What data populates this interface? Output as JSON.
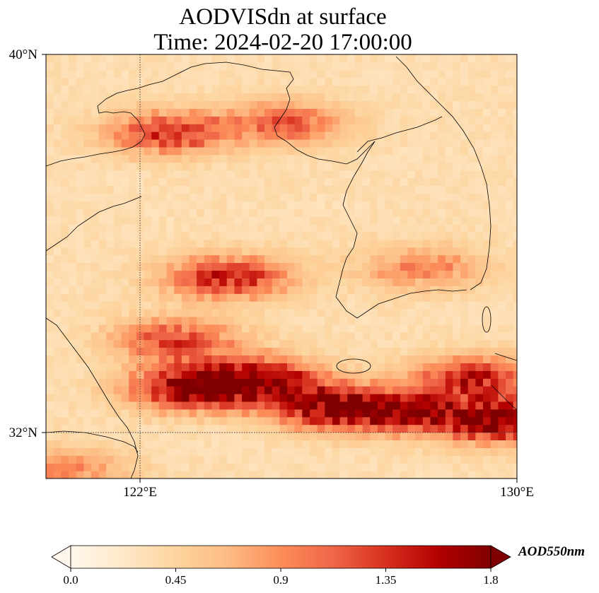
{
  "title": {
    "line1": "AODVISdn at surface",
    "line2": "Time: 2024-02-20 17:00:00"
  },
  "axes": {
    "lat_ticks": [
      "40°N",
      "32°N"
    ],
    "lon_ticks": [
      "122°E",
      "130°E"
    ],
    "lat_range": [
      31.2,
      40.0
    ],
    "lon_range": [
      120.0,
      130.0
    ],
    "gridlines": "dotted at 122°E and 32°N"
  },
  "colorbar": {
    "label": "AOD550nm",
    "ticks": [
      "0.0",
      "0.45",
      "0.9",
      "1.35",
      "1.8"
    ],
    "range": [
      0.0,
      1.8
    ],
    "extend": "both",
    "colormap": "OrRd",
    "colors": [
      "#fff7ec",
      "#fee8c8",
      "#fdd49e",
      "#fdbb84",
      "#fc8d59",
      "#ef6548",
      "#d7301f",
      "#b30000",
      "#7f0000"
    ]
  },
  "chart_data": {
    "type": "heatmap",
    "variable": "AODVISdn",
    "field_description": "gridded aerosol optical depth over Yellow Sea / Korea; high bands near 37-38°N off Liaodong, 34.5-35.5°N central Yellow Sea, and 32.5-33.5°N south of Korea",
    "hotspots": [
      {
        "lon": 122.5,
        "lat": 38.3,
        "value": 1.3
      },
      {
        "lon": 125.0,
        "lat": 38.5,
        "value": 1.1
      },
      {
        "lon": 123.8,
        "lat": 35.3,
        "value": 1.4
      },
      {
        "lon": 122.7,
        "lat": 34.0,
        "value": 1.2
      },
      {
        "lon": 123.0,
        "lat": 33.0,
        "value": 1.7
      },
      {
        "lon": 124.5,
        "lat": 33.2,
        "value": 1.5
      },
      {
        "lon": 126.0,
        "lat": 32.6,
        "value": 1.6
      },
      {
        "lon": 127.7,
        "lat": 32.5,
        "value": 1.3
      },
      {
        "lon": 129.0,
        "lat": 33.2,
        "value": 1.4
      },
      {
        "lon": 129.7,
        "lat": 32.3,
        "value": 1.7
      },
      {
        "lon": 120.3,
        "lat": 31.3,
        "value": 0.9
      },
      {
        "lon": 127.9,
        "lat": 35.5,
        "value": 0.9
      }
    ]
  }
}
